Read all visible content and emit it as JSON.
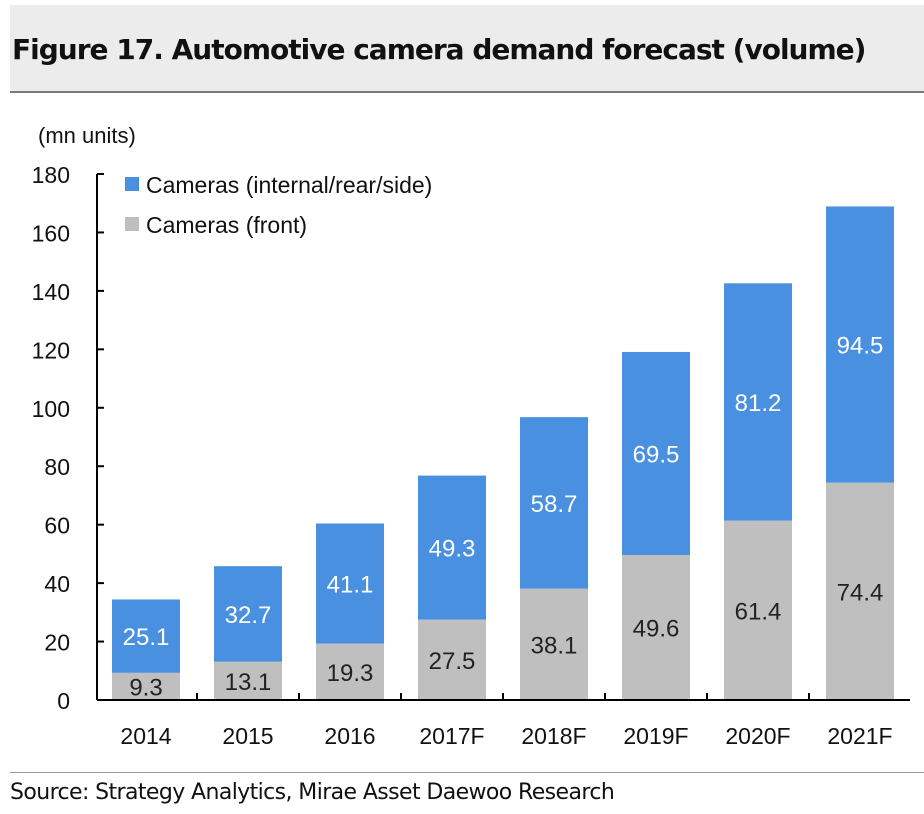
{
  "title": "Figure 17. Automotive camera demand forecast (volume)",
  "source": "Source: Strategy Analytics, Mirae Asset Daewoo Research",
  "chart_data": {
    "type": "bar",
    "stacked": true,
    "title": "Figure 17. Automotive camera demand forecast (volume)",
    "ylabel": "(mn units)",
    "xlabel": "",
    "ylim": [
      0,
      180
    ],
    "yticks": [
      0,
      20,
      40,
      60,
      80,
      100,
      120,
      140,
      160,
      180
    ],
    "grid": false,
    "legend": "top-left",
    "categories": [
      "2014",
      "2015",
      "2016",
      "2017F",
      "2018F",
      "2019F",
      "2020F",
      "2021F"
    ],
    "series": [
      {
        "name": "Cameras (front)",
        "color": "#bfbfbf",
        "label_color": "#222222",
        "values": [
          9.3,
          13.1,
          19.3,
          27.5,
          38.1,
          49.6,
          61.4,
          74.4
        ]
      },
      {
        "name": "Cameras (internal/rear/side)",
        "color": "#4a90e0",
        "label_color": "#ffffff",
        "values": [
          25.1,
          32.7,
          41.1,
          49.3,
          58.7,
          69.5,
          81.2,
          94.5
        ]
      }
    ]
  }
}
